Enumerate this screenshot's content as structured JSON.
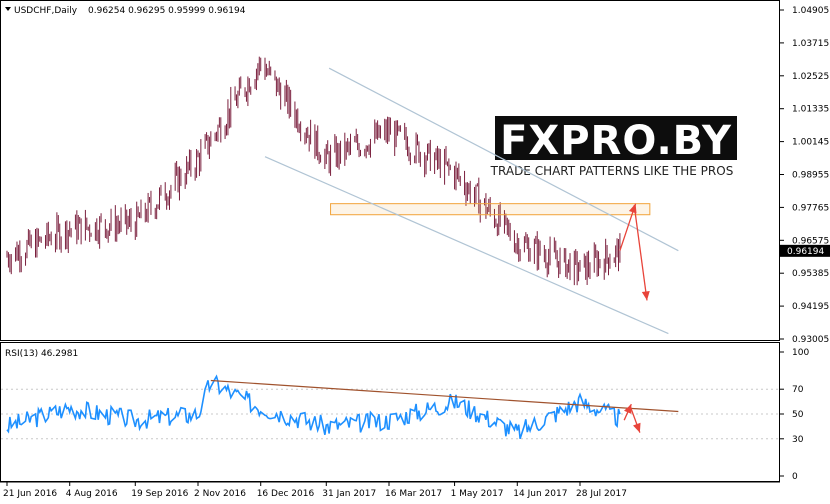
{
  "header": {
    "symbol": "USDCHF,Daily",
    "ohlc": "0.96254 0.96295 0.95999 0.96194"
  },
  "watermark": {
    "title": "FXPRO.BY",
    "subtitle": "TRADE CHART PATTERNS LIKE THE PROS"
  },
  "colors": {
    "candle": "#7a1f3d",
    "rsi_line": "#1e90ff",
    "channel": "#b0c4d4",
    "trendline": "#a0522d",
    "zone": "#f2a33a",
    "arrow": "#e8443a",
    "price_tag_bg": "#000000"
  },
  "chart_data": [
    {
      "type": "candlestick",
      "title": "",
      "ylim": [
        0.93005,
        1.04905
      ],
      "yticks": [
        "1.04905",
        "1.03715",
        "1.02525",
        "1.01335",
        "1.00145",
        "0.98955",
        "0.97765",
        "0.96575",
        "0.95385",
        "0.94195",
        "0.93005"
      ],
      "last_price": "0.96194",
      "xticks": [
        "21 Jun 2016",
        "4 Aug 2016",
        "19 Sep 2016",
        "2 Nov 2016",
        "16 Dec 2016",
        "31 Jan 2017",
        "16 Mar 2017",
        "1 May 2017",
        "14 Jun 2017",
        "28 Jul 2017"
      ],
      "series": [
        {
          "x": [
            "21 Jun 2016",
            "4 Aug 2016",
            "19 Sep 2016",
            "2 Nov 2016",
            "16 Dec 2016",
            "31 Jan 2017",
            "16 Mar 2017",
            "1 May 2017",
            "14 Jun 2017",
            "28 Jul 2017",
            "25 Aug 2017"
          ],
          "values": [
            0.96,
            0.97,
            0.972,
            0.995,
            1.03,
            0.995,
            1.005,
            0.99,
            0.965,
            0.955,
            0.9619
          ]
        }
      ],
      "channel": {
        "upper": [
          [
            "2 Feb 2017",
            1.028
          ],
          [
            "5 Oct 2017",
            0.962
          ]
        ],
        "lower": [
          [
            "19 Dec 2016",
            0.996
          ],
          [
            "28 Sep 2017",
            0.932
          ]
        ]
      },
      "zone": {
        "x": [
          "3 Feb 2017",
          "15 Sep 2017"
        ],
        "y": [
          0.975,
          0.979
        ]
      },
      "arrows": [
        {
          "from": [
            "25 Aug 2017",
            0.962
          ],
          "to": [
            "5 Sep 2017",
            0.979
          ]
        },
        {
          "from": [
            "4 Sep 2017",
            0.9785
          ],
          "to": [
            "13 Sep 2017",
            0.944
          ]
        }
      ]
    },
    {
      "type": "line",
      "title": "RSI(13) 46.2981",
      "ylim": [
        0,
        100
      ],
      "yticks": [
        "100",
        "70",
        "50",
        "30",
        "0"
      ],
      "series": [
        {
          "x": [
            "21 Jun 2016",
            "4 Aug 2016",
            "19 Sep 2016",
            "2 Nov 2016",
            "11 Nov 2016",
            "16 Dec 2016",
            "31 Jan 2017",
            "16 Mar 2017",
            "1 May 2017",
            "14 Jun 2017",
            "28 Jul 2017",
            "25 Aug 2017"
          ],
          "values": [
            40,
            55,
            45,
            50,
            76,
            55,
            40,
            45,
            60,
            35,
            60,
            46.3
          ]
        }
      ],
      "trendline": [
        [
          "11 Nov 2016",
          77
        ],
        [
          "5 Oct 2017",
          52
        ]
      ],
      "arrows": [
        {
          "from": [
            "28 Aug 2017",
            45
          ],
          "to": [
            "2 Sep 2017",
            58
          ]
        },
        {
          "from": [
            "1 Sep 2017",
            57
          ],
          "to": [
            "8 Sep 2017",
            35
          ]
        }
      ]
    }
  ]
}
